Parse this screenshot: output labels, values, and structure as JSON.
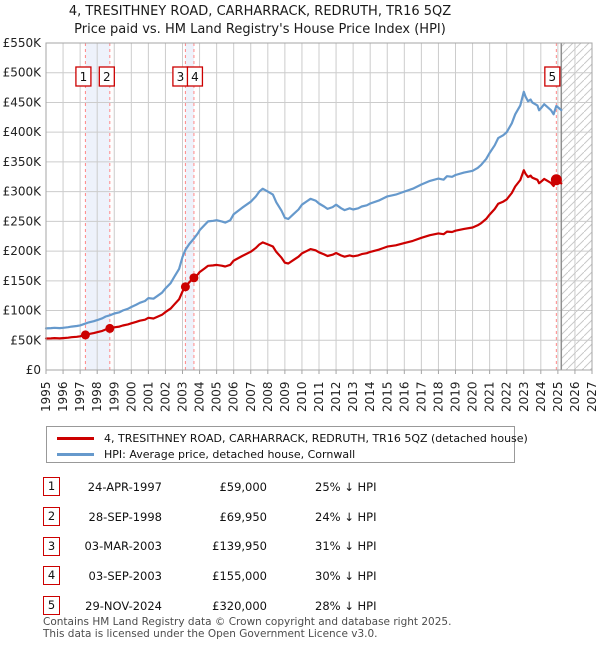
{
  "title": {
    "line1": "4, TRESITHNEY ROAD, CARHARRACK, REDRUTH, TR16 5QZ",
    "line2": "Price paid vs. HM Land Registry's House Price Index (HPI)"
  },
  "legend": [
    {
      "label": "4, TRESITHNEY ROAD, CARHARRACK, REDRUTH, TR16 5QZ (detached house)",
      "color": "#cc0000"
    },
    {
      "label": "HPI: Average price, detached house, Cornwall",
      "color": "#6699cc"
    }
  ],
  "transactions": [
    {
      "num": "1",
      "date": "24-APR-1997",
      "price": "£59,000",
      "vs_hpi": "25% ↓ HPI"
    },
    {
      "num": "2",
      "date": "28-SEP-1998",
      "price": "£69,950",
      "vs_hpi": "24% ↓ HPI"
    },
    {
      "num": "3",
      "date": "03-MAR-2003",
      "price": "£139,950",
      "vs_hpi": "31% ↓ HPI"
    },
    {
      "num": "4",
      "date": "03-SEP-2003",
      "price": "£155,000",
      "vs_hpi": "30% ↓ HPI"
    },
    {
      "num": "5",
      "date": "29-NOV-2024",
      "price": "£320,000",
      "vs_hpi": "28% ↓ HPI"
    }
  ],
  "footer": {
    "line1": "Contains HM Land Registry data © Crown copyright and database right 2025.",
    "line2": "This data is licensed under the Open Government Licence v3.0."
  },
  "chart_data": {
    "type": "line",
    "title": "4, TRESITHNEY ROAD, CARHARRACK, REDRUTH, TR16 5QZ — Price paid vs. HPI",
    "xlabel": "",
    "ylabel": "",
    "units": "GBP thousands",
    "grid": true,
    "legend_position": "bottom",
    "x_range": [
      1995,
      2027
    ],
    "y_range_k": [
      0,
      550
    ],
    "data_end_year": 2025.2,
    "y_ticks": [
      {
        "value_k": 0,
        "label": "£0"
      },
      {
        "value_k": 50,
        "label": "£50K"
      },
      {
        "value_k": 100,
        "label": "£100K"
      },
      {
        "value_k": 150,
        "label": "£150K"
      },
      {
        "value_k": 200,
        "label": "£200K"
      },
      {
        "value_k": 250,
        "label": "£250K"
      },
      {
        "value_k": 300,
        "label": "£300K"
      },
      {
        "value_k": 350,
        "label": "£350K"
      },
      {
        "value_k": 400,
        "label": "£400K"
      },
      {
        "value_k": 450,
        "label": "£450K"
      },
      {
        "value_k": 500,
        "label": "£500K"
      },
      {
        "value_k": 550,
        "label": "£550K"
      }
    ],
    "x_ticks": [
      "1995",
      "1996",
      "1997",
      "1998",
      "1999",
      "2000",
      "2001",
      "2002",
      "2003",
      "2004",
      "2005",
      "2006",
      "2007",
      "2008",
      "2009",
      "2010",
      "2011",
      "2012",
      "2013",
      "2014",
      "2015",
      "2016",
      "2017",
      "2018",
      "2019",
      "2020",
      "2021",
      "2022",
      "2023",
      "2024",
      "2025",
      "2026",
      "2027"
    ],
    "colors": {
      "property": "#cc0000",
      "hpi": "#6699cc",
      "band": "#eef2fb",
      "dashed": "#ff8888",
      "grid": "#cccccc",
      "border": "#a5a5a5",
      "now_line": "#909090",
      "hatch": "#c9c9c9"
    },
    "bands": [
      [
        1997.31,
        1998.74
      ],
      [
        2003.17,
        2003.67
      ]
    ],
    "sales": [
      {
        "num": "1",
        "year": 1997.31,
        "price_k": 59,
        "r": 4.5,
        "box_dx": -2
      },
      {
        "num": "2",
        "year": 1998.74,
        "price_k": 69.95,
        "r": 4.5,
        "box_dx": -3
      },
      {
        "num": "3",
        "year": 2003.17,
        "price_k": 139.95,
        "r": 4.5,
        "box_dx": -5
      },
      {
        "num": "4",
        "year": 2003.67,
        "price_k": 155,
        "r": 4.5,
        "box_dx": 1
      },
      {
        "num": "5",
        "year": 2024.91,
        "price_k": 320,
        "r": 5.5,
        "box_dx": -4
      }
    ],
    "series": [
      {
        "id": "property",
        "name": "4, TRESITHNEY ROAD, CARHARRACK, REDRUTH, TR16 5QZ (detached house)",
        "color": "#cc0000",
        "points": [
          [
            1995.0,
            52.9
          ],
          [
            1995.3,
            53.2
          ],
          [
            1995.5,
            53.6
          ],
          [
            1995.8,
            53.2
          ],
          [
            1996.0,
            53.6
          ],
          [
            1996.3,
            54.4
          ],
          [
            1996.5,
            55.1
          ],
          [
            1996.8,
            55.9
          ],
          [
            1997.0,
            56.6
          ],
          [
            1997.31,
            59.0
          ],
          [
            1997.5,
            60.4
          ],
          [
            1997.8,
            62.0
          ],
          [
            1998.0,
            63.5
          ],
          [
            1998.3,
            65.8
          ],
          [
            1998.5,
            68.1
          ],
          [
            1998.74,
            69.95
          ],
          [
            1999.0,
            71.8
          ],
          [
            1999.3,
            73.0
          ],
          [
            1999.5,
            74.8
          ],
          [
            1999.8,
            76.7
          ],
          [
            2000.0,
            78.5
          ],
          [
            2000.3,
            81.1
          ],
          [
            2000.5,
            82.9
          ],
          [
            2000.8,
            84.6
          ],
          [
            2001.0,
            87.8
          ],
          [
            2001.3,
            86.6
          ],
          [
            2001.5,
            89.1
          ],
          [
            2001.8,
            92.9
          ],
          [
            2002.0,
            97.4
          ],
          [
            2002.3,
            103.2
          ],
          [
            2002.5,
            109.7
          ],
          [
            2002.8,
            118.9
          ],
          [
            2003.0,
            132.2
          ],
          [
            2003.17,
            139.95
          ],
          [
            2003.4,
            147.6
          ],
          [
            2003.67,
            155.0
          ],
          [
            2003.9,
            161.0
          ],
          [
            2004.0,
            164.6
          ],
          [
            2004.3,
            170.9
          ],
          [
            2004.5,
            175.2
          ],
          [
            2004.8,
            176.0
          ],
          [
            2005.0,
            176.7
          ],
          [
            2005.3,
            175.4
          ],
          [
            2005.5,
            174.0
          ],
          [
            2005.8,
            176.9
          ],
          [
            2006.0,
            184.0
          ],
          [
            2006.5,
            191.8
          ],
          [
            2007.0,
            199.0
          ],
          [
            2007.3,
            205.4
          ],
          [
            2007.5,
            211.1
          ],
          [
            2007.7,
            214.7
          ],
          [
            2008.0,
            211.2
          ],
          [
            2008.3,
            207.8
          ],
          [
            2008.5,
            198.7
          ],
          [
            2008.8,
            188.9
          ],
          [
            2009.0,
            180.5
          ],
          [
            2009.2,
            179.1
          ],
          [
            2009.5,
            184.8
          ],
          [
            2009.8,
            190.5
          ],
          [
            2010.0,
            196.2
          ],
          [
            2010.3,
            200.5
          ],
          [
            2010.5,
            203.4
          ],
          [
            2010.8,
            201.4
          ],
          [
            2011.0,
            197.9
          ],
          [
            2011.3,
            194.4
          ],
          [
            2011.5,
            191.7
          ],
          [
            2011.8,
            193.9
          ],
          [
            2012.0,
            196.8
          ],
          [
            2012.3,
            192.6
          ],
          [
            2012.5,
            190.5
          ],
          [
            2012.8,
            192.7
          ],
          [
            2013.0,
            191.3
          ],
          [
            2013.3,
            192.8
          ],
          [
            2013.5,
            195.0
          ],
          [
            2013.8,
            196.5
          ],
          [
            2014.0,
            198.7
          ],
          [
            2014.5,
            202.4
          ],
          [
            2015.0,
            207.5
          ],
          [
            2015.5,
            209.7
          ],
          [
            2016.0,
            213.4
          ],
          [
            2016.5,
            217.2
          ],
          [
            2017.0,
            222.3
          ],
          [
            2017.5,
            226.7
          ],
          [
            2018.0,
            229.7
          ],
          [
            2018.3,
            228.4
          ],
          [
            2018.5,
            232.7
          ],
          [
            2018.8,
            232.1
          ],
          [
            2019.0,
            234.3
          ],
          [
            2019.5,
            237.3
          ],
          [
            2020.0,
            239.6
          ],
          [
            2020.3,
            243.3
          ],
          [
            2020.5,
            246.9
          ],
          [
            2020.8,
            254.2
          ],
          [
            2021.0,
            261.4
          ],
          [
            2021.3,
            270.8
          ],
          [
            2021.5,
            279.5
          ],
          [
            2021.8,
            283.2
          ],
          [
            2022.0,
            286.9
          ],
          [
            2022.3,
            297.7
          ],
          [
            2022.5,
            308.6
          ],
          [
            2022.8,
            319.5
          ],
          [
            2023.0,
            336.1
          ],
          [
            2023.1,
            330.4
          ],
          [
            2023.25,
            324.7
          ],
          [
            2023.4,
            326.9
          ],
          [
            2023.5,
            323.4
          ],
          [
            2023.8,
            319.9
          ],
          [
            2023.9,
            314.2
          ],
          [
            2024.0,
            316.4
          ],
          [
            2024.2,
            321.5
          ],
          [
            2024.4,
            318.0
          ],
          [
            2024.6,
            314.5
          ],
          [
            2024.75,
            309.5
          ],
          [
            2024.91,
            320.0
          ],
          [
            2025.0,
            316.8
          ],
          [
            2025.2,
            313.9
          ]
        ]
      },
      {
        "id": "hpi",
        "name": "HPI: Average price, detached house, Cornwall",
        "color": "#6699cc",
        "points": [
          [
            1995.0,
            70
          ],
          [
            1995.3,
            70.5
          ],
          [
            1995.5,
            71
          ],
          [
            1995.8,
            70.5
          ],
          [
            1996.0,
            71
          ],
          [
            1996.3,
            72
          ],
          [
            1996.5,
            73
          ],
          [
            1996.8,
            74
          ],
          [
            1997.0,
            75
          ],
          [
            1997.31,
            78
          ],
          [
            1997.5,
            80
          ],
          [
            1997.8,
            82
          ],
          [
            1998.0,
            84
          ],
          [
            1998.3,
            87
          ],
          [
            1998.5,
            90
          ],
          [
            1998.74,
            92
          ],
          [
            1999.0,
            95
          ],
          [
            1999.3,
            97
          ],
          [
            1999.5,
            100
          ],
          [
            1999.8,
            103
          ],
          [
            2000.0,
            106
          ],
          [
            2000.3,
            110
          ],
          [
            2000.5,
            113
          ],
          [
            2000.8,
            116
          ],
          [
            2001.0,
            121
          ],
          [
            2001.3,
            120
          ],
          [
            2001.5,
            124
          ],
          [
            2001.8,
            130
          ],
          [
            2002.0,
            137
          ],
          [
            2002.3,
            146
          ],
          [
            2002.5,
            156
          ],
          [
            2002.8,
            170
          ],
          [
            2003.0,
            190
          ],
          [
            2003.17,
            202
          ],
          [
            2003.4,
            212
          ],
          [
            2003.67,
            221
          ],
          [
            2003.9,
            230
          ],
          [
            2004.0,
            235
          ],
          [
            2004.3,
            244
          ],
          [
            2004.5,
            250
          ],
          [
            2004.8,
            251
          ],
          [
            2005.0,
            252
          ],
          [
            2005.3,
            250
          ],
          [
            2005.5,
            248
          ],
          [
            2005.8,
            252
          ],
          [
            2006.0,
            262
          ],
          [
            2006.5,
            273
          ],
          [
            2007.0,
            283
          ],
          [
            2007.3,
            292
          ],
          [
            2007.5,
            300
          ],
          [
            2007.7,
            305
          ],
          [
            2008.0,
            300
          ],
          [
            2008.3,
            295
          ],
          [
            2008.5,
            282
          ],
          [
            2008.8,
            268
          ],
          [
            2009.0,
            256
          ],
          [
            2009.2,
            254
          ],
          [
            2009.5,
            262
          ],
          [
            2009.8,
            270
          ],
          [
            2010.0,
            278
          ],
          [
            2010.3,
            284
          ],
          [
            2010.5,
            288
          ],
          [
            2010.8,
            285
          ],
          [
            2011.0,
            280
          ],
          [
            2011.3,
            275
          ],
          [
            2011.5,
            271
          ],
          [
            2011.8,
            274
          ],
          [
            2012.0,
            278
          ],
          [
            2012.3,
            272
          ],
          [
            2012.5,
            269
          ],
          [
            2012.8,
            272
          ],
          [
            2013.0,
            270
          ],
          [
            2013.3,
            272
          ],
          [
            2013.5,
            275
          ],
          [
            2013.8,
            277
          ],
          [
            2014.0,
            280
          ],
          [
            2014.5,
            285
          ],
          [
            2015.0,
            292
          ],
          [
            2015.5,
            295
          ],
          [
            2016.0,
            300
          ],
          [
            2016.5,
            305
          ],
          [
            2017.0,
            312
          ],
          [
            2017.5,
            318
          ],
          [
            2018.0,
            322
          ],
          [
            2018.3,
            320
          ],
          [
            2018.5,
            326
          ],
          [
            2018.8,
            325
          ],
          [
            2019.0,
            328
          ],
          [
            2019.5,
            332
          ],
          [
            2020.0,
            335
          ],
          [
            2020.3,
            340
          ],
          [
            2020.5,
            345
          ],
          [
            2020.8,
            355
          ],
          [
            2021.0,
            365
          ],
          [
            2021.3,
            378
          ],
          [
            2021.5,
            390
          ],
          [
            2021.8,
            395
          ],
          [
            2022.0,
            400
          ],
          [
            2022.3,
            415
          ],
          [
            2022.5,
            430
          ],
          [
            2022.8,
            445
          ],
          [
            2023.0,
            468
          ],
          [
            2023.1,
            460
          ],
          [
            2023.25,
            452
          ],
          [
            2023.4,
            455
          ],
          [
            2023.5,
            450
          ],
          [
            2023.8,
            445
          ],
          [
            2023.9,
            437
          ],
          [
            2024.0,
            440
          ],
          [
            2024.2,
            447
          ],
          [
            2024.4,
            442
          ],
          [
            2024.6,
            437
          ],
          [
            2024.75,
            430
          ],
          [
            2024.91,
            444
          ],
          [
            2025.0,
            442
          ],
          [
            2025.2,
            437
          ]
        ]
      }
    ]
  }
}
